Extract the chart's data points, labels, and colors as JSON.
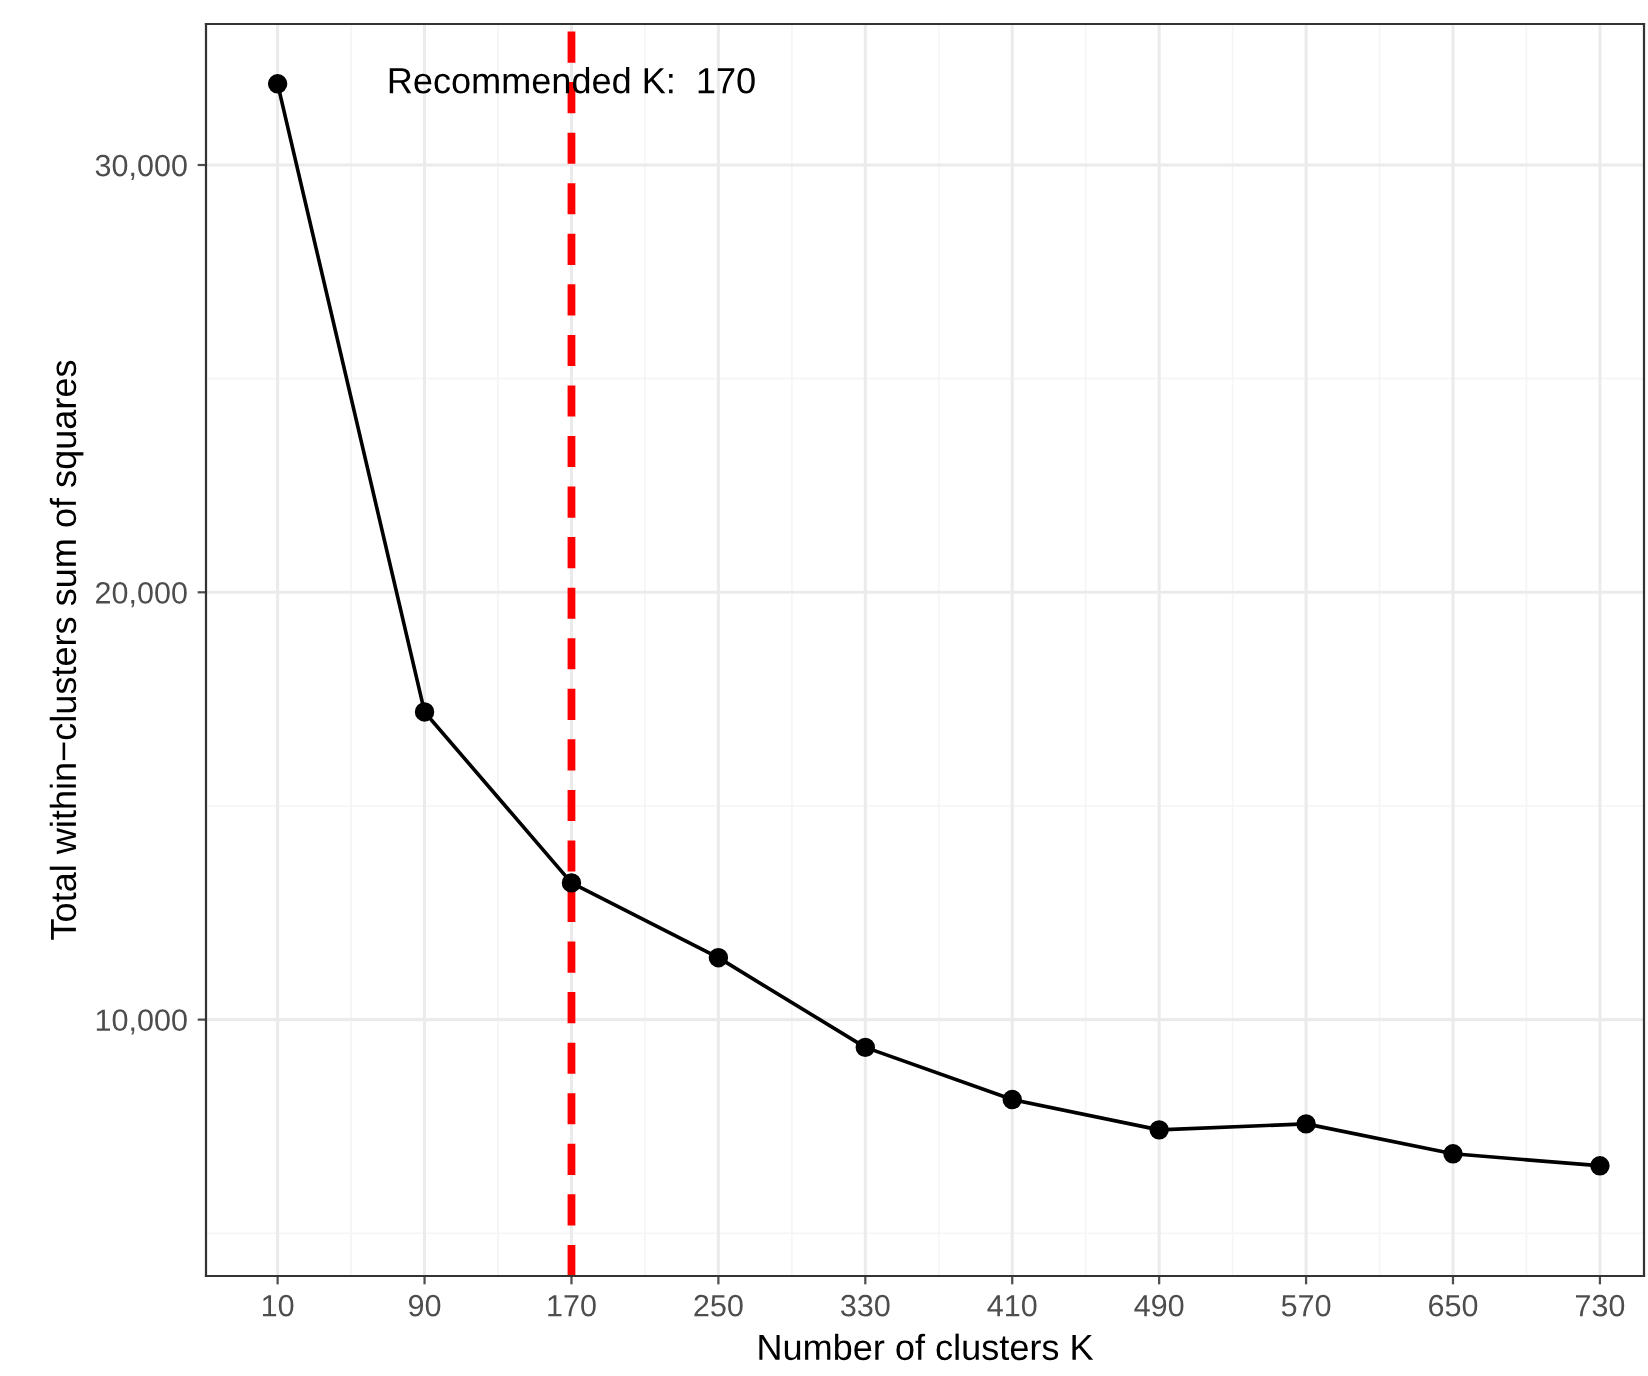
{
  "chart_data": {
    "type": "line",
    "xlabel": "Number of clusters K",
    "ylabel": "Total within−clusters sum of squares",
    "x": [
      10,
      90,
      170,
      250,
      330,
      410,
      490,
      570,
      650,
      730
    ],
    "series": [
      {
        "color": "#000000",
        "values": [
          31900,
          17200,
          13200,
          11450,
          9350,
          8130,
          7420,
          7560,
          6860,
          6580
        ]
      }
    ],
    "marker": "circle",
    "line_style": "solid",
    "xlim": [
      -29,
      754
    ],
    "ylim": [
      4000,
      33300
    ],
    "xticks": [
      10,
      90,
      170,
      250,
      330,
      410,
      490,
      570,
      650,
      730
    ],
    "yticks": [
      {
        "value": 10000,
        "label": "10,000"
      },
      {
        "value": 20000,
        "label": "20,000"
      },
      {
        "value": 30000,
        "label": "30,000"
      }
    ],
    "grid": true,
    "legend": false,
    "ref_lines": [
      {
        "axis": "x",
        "value": 170,
        "label": "Recommended K:  170",
        "color": "#ff0000",
        "line_style": "dashed"
      }
    ]
  }
}
